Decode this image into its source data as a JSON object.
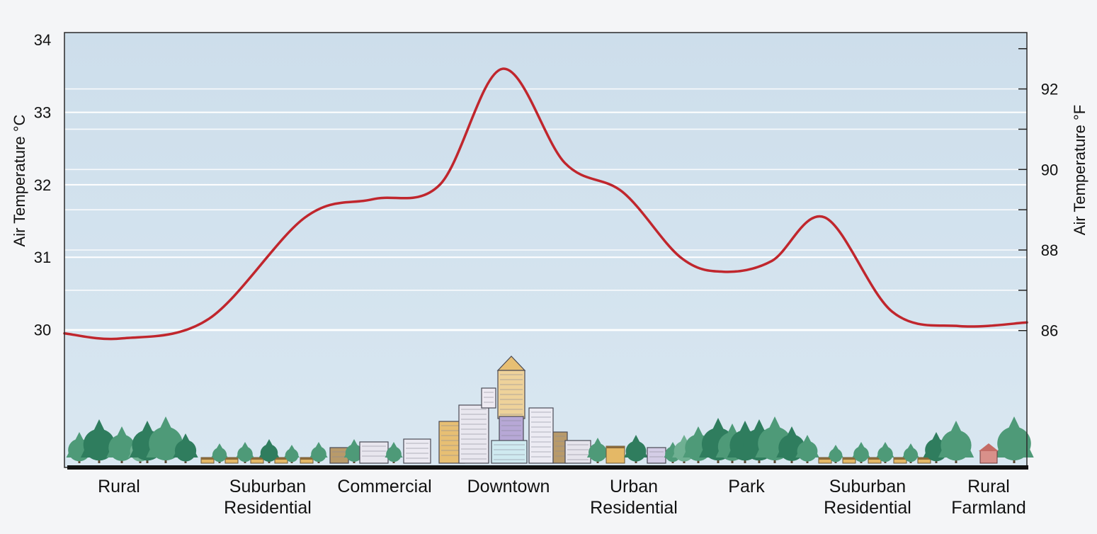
{
  "chart_data": {
    "type": "line",
    "title": "",
    "ylabel_left": "Air Temperature °C",
    "ylabel_right": "Air Temperature °F",
    "ylim_c": [
      28.1,
      34.1
    ],
    "ylim_f": [
      82.6,
      93.4
    ],
    "left_ticks": [
      "30",
      "31",
      "32",
      "33",
      "34"
    ],
    "right_ticks": [
      "86",
      "88",
      "90",
      "92"
    ],
    "categories": [
      {
        "lines": [
          "Rural"
        ]
      },
      {
        "lines": [
          "Suburban",
          "Residential"
        ]
      },
      {
        "lines": [
          "Commercial"
        ]
      },
      {
        "lines": [
          "Downtown"
        ]
      },
      {
        "lines": [
          "Urban",
          "Residential"
        ]
      },
      {
        "lines": [
          "Park"
        ]
      },
      {
        "lines": [
          "Suburban",
          "Residential"
        ]
      },
      {
        "lines": [
          "Rural",
          "Farmland"
        ]
      }
    ],
    "series": [
      {
        "x": [
          0.0,
          0.06,
          0.15,
          0.25,
          0.32,
          0.39,
          0.455,
          0.52,
          0.58,
          0.64,
          0.685,
          0.735,
          0.79,
          0.86,
          0.93,
          1.0
        ],
        "y": [
          29.95,
          29.88,
          30.15,
          31.55,
          31.8,
          32.0,
          33.6,
          32.3,
          31.9,
          31.0,
          30.8,
          30.95,
          31.55,
          30.25,
          30.05,
          30.1
        ]
      }
    ],
    "grid": true,
    "colors": {
      "line": "#c0262d",
      "plot_bg": "#d2e2ee",
      "grid": "#ffffff"
    }
  }
}
